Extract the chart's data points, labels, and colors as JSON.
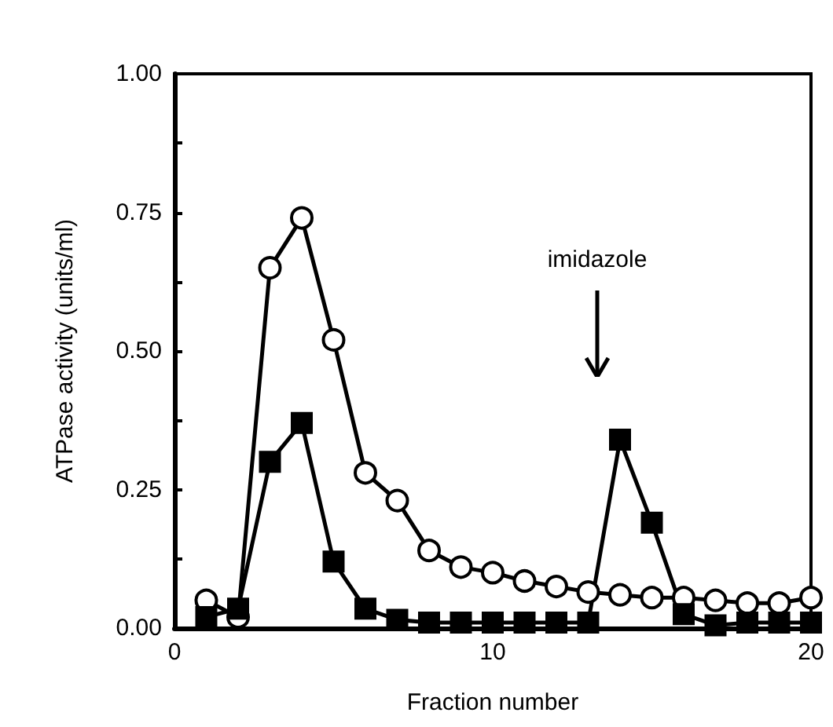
{
  "chart_data": {
    "type": "line",
    "xlabel": "Fraction number",
    "ylabel": "ATPase activity (units/ml)",
    "x": [
      1,
      2,
      3,
      4,
      5,
      6,
      7,
      8,
      9,
      10,
      11,
      12,
      13,
      14,
      15,
      16,
      17,
      18,
      19,
      20
    ],
    "series": [
      {
        "color": "#000000",
        "marker": "circle",
        "values": [
          0.05,
          0.02,
          0.65,
          0.74,
          0.52,
          0.28,
          0.23,
          0.14,
          0.11,
          0.1,
          0.085,
          0.075,
          0.065,
          0.06,
          0.055,
          0.055,
          0.05,
          0.045,
          0.045,
          0.055
        ]
      },
      {
        "color": "#000000",
        "marker": "square",
        "values": [
          0.02,
          0.035,
          0.3,
          0.37,
          0.12,
          0.035,
          0.015,
          0.01,
          0.01,
          0.01,
          0.01,
          0.01,
          0.01,
          0.34,
          0.19,
          0.025,
          0.005,
          0.01,
          0.01,
          0.01
        ]
      }
    ],
    "xlim": [
      0,
      20
    ],
    "xticks": [
      0,
      10,
      20
    ],
    "ylim": [
      0,
      1
    ],
    "yticks": [
      {
        "value": 0,
        "label": "0.00"
      },
      {
        "value": 0.125,
        "label": null
      },
      {
        "value": 0.25,
        "label": "0.25"
      },
      {
        "value": 0.375,
        "label": null
      },
      {
        "value": 0.5,
        "label": "0.50"
      },
      {
        "value": 0.625,
        "label": null
      },
      {
        "value": 0.75,
        "label": "0.75"
      },
      {
        "value": 0.875,
        "label": null
      },
      {
        "value": 1,
        "label": "1.00"
      }
    ],
    "annotations": [
      "imidazole"
    ],
    "grid": false,
    "line_style": "solid"
  }
}
